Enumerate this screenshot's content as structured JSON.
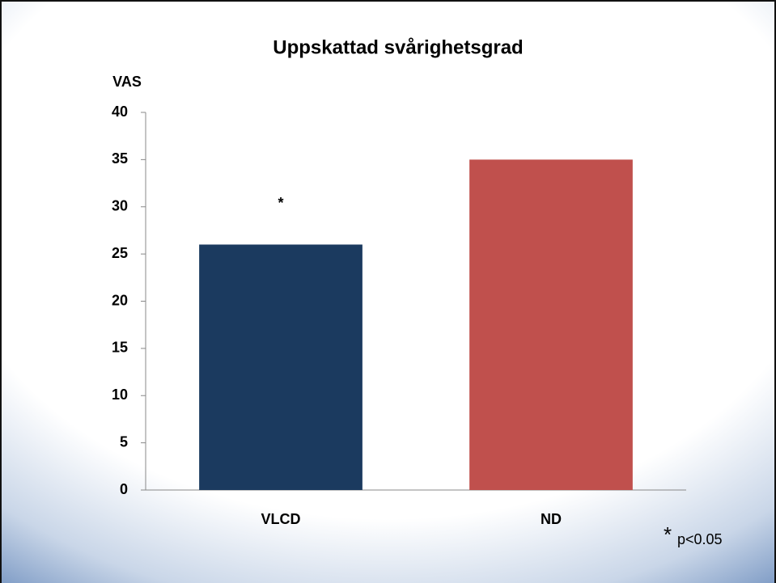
{
  "chart_data": {
    "type": "bar",
    "title": "Uppskattad svårighetsgrad",
    "y_label": "VAS",
    "categories": [
      "VLCD",
      "ND"
    ],
    "values": [
      26,
      35
    ],
    "colors": [
      "#1b3a5f",
      "#c0504d"
    ],
    "value_annotations": [
      "*",
      null
    ],
    "footnote": {
      "marker": "*",
      "text": "p<0.05"
    },
    "ylim": [
      0,
      40
    ],
    "yticks": [
      0,
      5,
      10,
      15,
      20,
      25,
      30,
      35,
      40
    ],
    "grid": false
  }
}
